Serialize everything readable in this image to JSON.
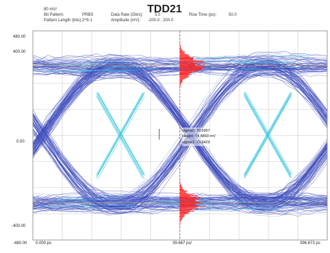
{
  "header": {
    "scale": "80 mV/",
    "pattern_label": "Bit Pattern:",
    "pattern_value": "PRBS",
    "length_label": "Pattern Length (bits):",
    "length_value": "2^9-1",
    "rate_label": "Data Rate (Gb/s):",
    "rate_value": "5.0",
    "amp_label": "Amplitude (mV):",
    "amp_value": "-200.0 , 200.0",
    "rise_label": "Rise Time (ps):",
    "rise_value": "50.0"
  },
  "chart_data": {
    "type": "eye-diagram",
    "title": "TDD21",
    "y_ticks": [
      "400.00",
      "0.00",
      "-400.00"
    ],
    "y_edge_labels": [
      "480.00",
      "-480.00"
    ],
    "x_labels": [
      "0.000 ps",
      "39.667 ps/",
      "396.673 ps"
    ],
    "ylim": [
      -480,
      480
    ],
    "xlim": [
      0,
      396.673
    ],
    "grid": true,
    "levels_mV": [
      310,
      -300
    ],
    "crossings_ps": [
      118,
      317
    ],
    "cursor_ps": 198,
    "annotation": {
      "line1": "sigma0: 70.5957",
      "line2": "Height: 74.8893 mV",
      "line3": "sigma1: 70.9429"
    },
    "colors": {
      "trace": "#3a46b8",
      "trace_light": "#6f86d6",
      "cyan": "#3fc8e0",
      "histogram": "#ff1f1f",
      "cursor": "#e2453c",
      "grid": "#c8c8c8"
    }
  }
}
